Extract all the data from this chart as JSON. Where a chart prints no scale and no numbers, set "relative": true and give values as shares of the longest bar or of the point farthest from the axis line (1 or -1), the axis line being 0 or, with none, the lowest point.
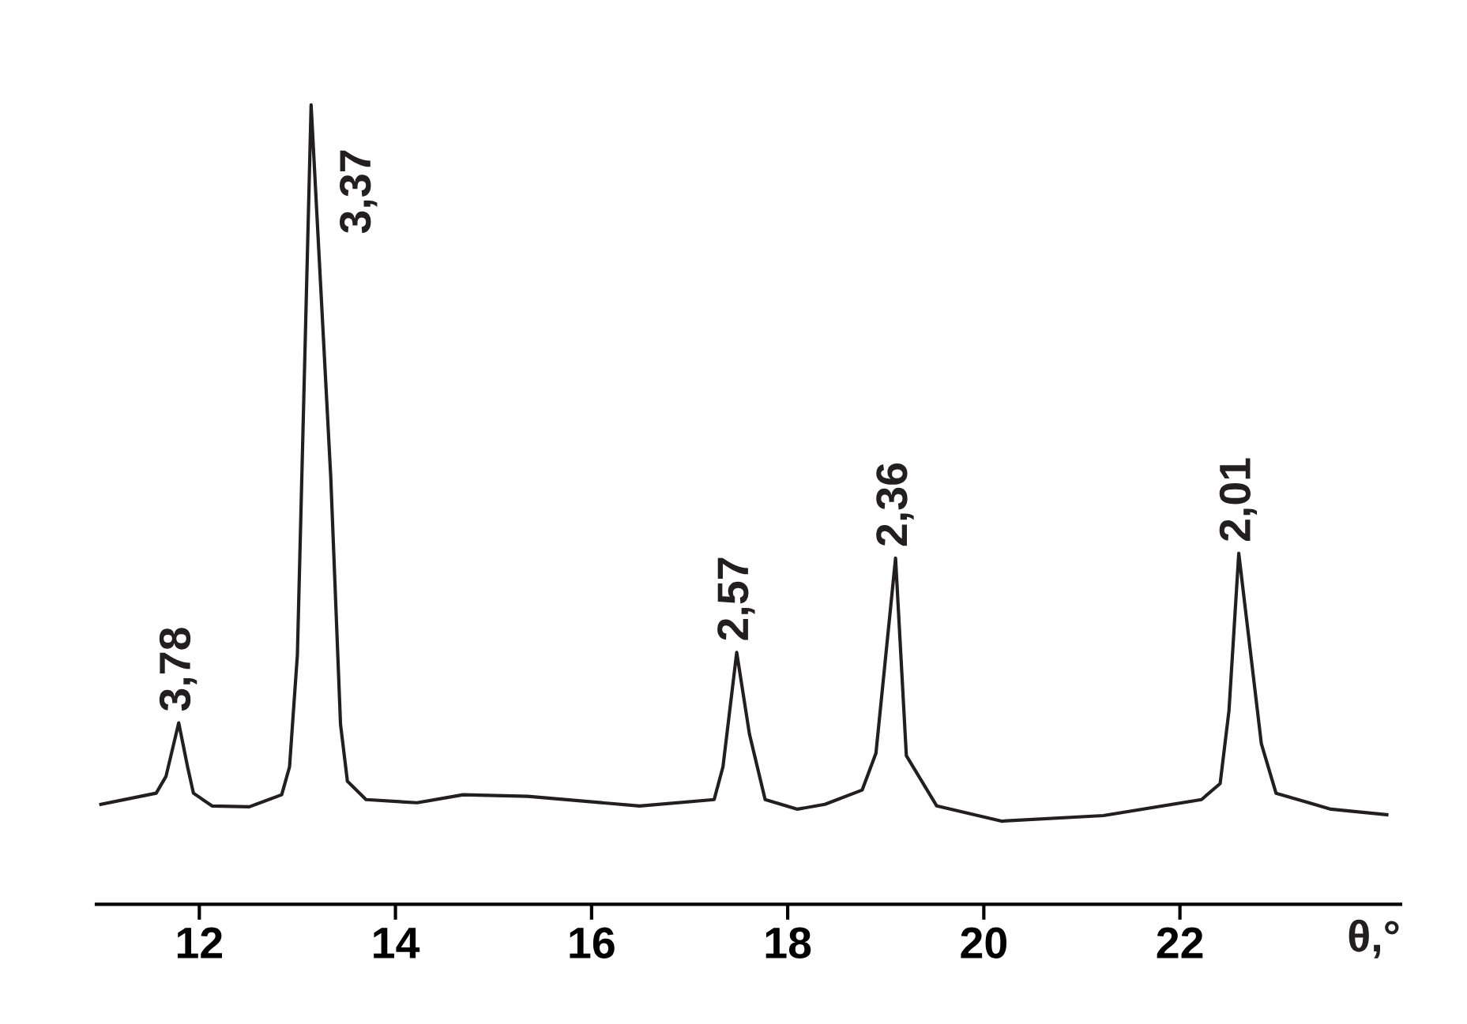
{
  "chart_data": {
    "type": "line",
    "relative": true,
    "xlabel": "θ,°",
    "color": "#231f20",
    "xlim": [
      10.95,
      24.25
    ],
    "xticks": [
      12,
      14,
      16,
      18,
      20,
      22
    ],
    "grid": false,
    "legend": false,
    "marker": "none",
    "line_style": "solid",
    "series": [
      {
        "color": "#231f20",
        "x": [
          10.996,
          11.56,
          11.66,
          11.79,
          11.88,
          11.94,
          12.13,
          12.51,
          12.84,
          12.92,
          13.0,
          13.14,
          13.34,
          13.44,
          13.51,
          13.7,
          14.22,
          14.69,
          15.35,
          16.49,
          17.25,
          17.34,
          17.48,
          17.61,
          17.77,
          18.1,
          18.38,
          18.76,
          18.9,
          19.1,
          19.21,
          19.52,
          20.18,
          21.22,
          22.22,
          22.41,
          22.5,
          22.6,
          22.83,
          22.98,
          23.54,
          24.11
        ],
        "values": [
          0.125,
          0.139,
          0.16,
          0.227,
          0.172,
          0.139,
          0.123,
          0.122,
          0.137,
          0.172,
          0.312,
          1.0,
          0.535,
          0.225,
          0.154,
          0.131,
          0.127,
          0.137,
          0.135,
          0.123,
          0.131,
          0.172,
          0.315,
          0.213,
          0.131,
          0.119,
          0.125,
          0.143,
          0.189,
          0.433,
          0.186,
          0.123,
          0.104,
          0.111,
          0.131,
          0.151,
          0.242,
          0.439,
          0.201,
          0.139,
          0.119,
          0.112
        ]
      }
    ],
    "annotations": [
      {
        "text": "3,78",
        "x": 11.79,
        "y": 0.227
      },
      {
        "text": "3,37",
        "x": 13.14,
        "y": 1.0
      },
      {
        "text": "2,57",
        "x": 17.48,
        "y": 0.315
      },
      {
        "text": "2,36",
        "x": 19.1,
        "y": 0.433
      },
      {
        "text": "2,01",
        "x": 22.6,
        "y": 0.439
      }
    ]
  }
}
